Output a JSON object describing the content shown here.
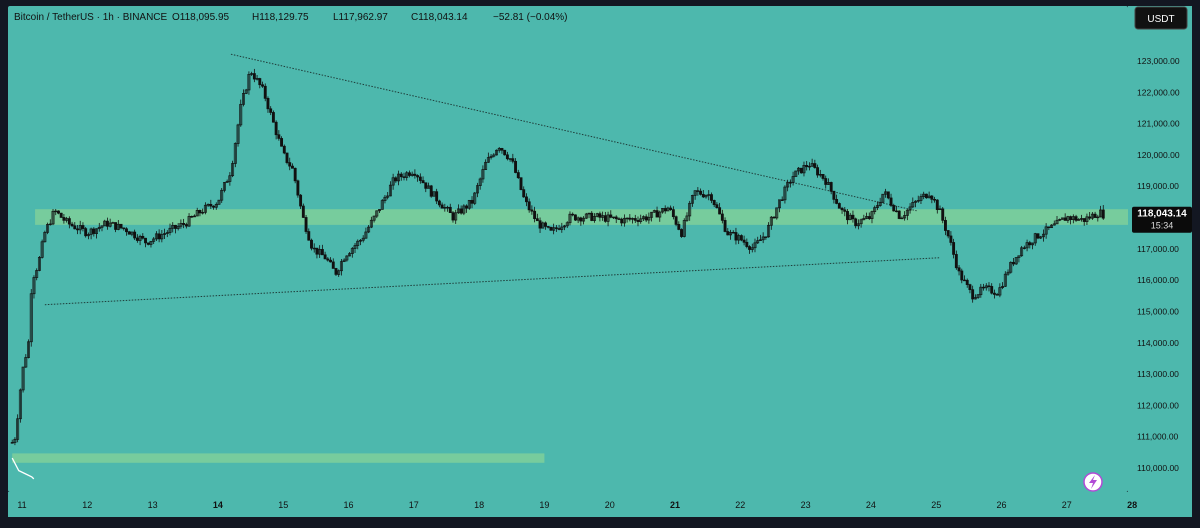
{
  "header": {
    "symbol": "Bitcoin / TetherUS · 1h · BINANCE",
    "open": "O118,095.95",
    "high": "H118,129.75",
    "low": "L117,962.97",
    "close": "C118,043.14",
    "change": "−52.81 (−0.04%)"
  },
  "currency_button": "USDT",
  "price_tag": {
    "price": "118,043.14",
    "countdown": "15:34"
  },
  "colors": {
    "background": "#4db8ad",
    "frame": "#131722",
    "zone": "#7fcf9a",
    "candle": "#111111",
    "price_label_bg": "#0b0b0b",
    "icon_accent": "#b14bd6"
  },
  "icons": {
    "corner": "lightning-icon"
  },
  "chart_data": {
    "type": "candlestick",
    "symbol": "BTC/USDT",
    "interval": "1h",
    "ylim": [
      109500,
      123800
    ],
    "yticks": [
      110000,
      111000,
      112000,
      113000,
      114000,
      115000,
      116000,
      117000,
      118000,
      119000,
      120000,
      121000,
      122000,
      123000
    ],
    "ytick_labels": [
      "110,000.00",
      "111,000.00",
      "112,000.00",
      "113,000.00",
      "114,000.00",
      "115,000.00",
      "116,000.00",
      "117,000.00",
      "118,000.00",
      "119,000.00",
      "120,000.00",
      "121,000.00",
      "122,000.00",
      "123,000.00"
    ],
    "xlim": [
      11.0,
      28.0
    ],
    "xticks": [
      {
        "x": 11,
        "label": "11",
        "bold": false
      },
      {
        "x": 12,
        "label": "12",
        "bold": false
      },
      {
        "x": 13,
        "label": "13",
        "bold": false
      },
      {
        "x": 14,
        "label": "14",
        "bold": true
      },
      {
        "x": 15,
        "label": "15",
        "bold": false
      },
      {
        "x": 16,
        "label": "16",
        "bold": false
      },
      {
        "x": 17,
        "label": "17",
        "bold": false
      },
      {
        "x": 18,
        "label": "18",
        "bold": false
      },
      {
        "x": 19,
        "label": "19",
        "bold": false
      },
      {
        "x": 20,
        "label": "20",
        "bold": false
      },
      {
        "x": 21,
        "label": "21",
        "bold": true
      },
      {
        "x": 22,
        "label": "22",
        "bold": false
      },
      {
        "x": 23,
        "label": "23",
        "bold": false
      },
      {
        "x": 24,
        "label": "24",
        "bold": false
      },
      {
        "x": 25,
        "label": "25",
        "bold": false
      },
      {
        "x": 26,
        "label": "26",
        "bold": false
      },
      {
        "x": 27,
        "label": "27",
        "bold": false
      },
      {
        "x": 28,
        "label": "28",
        "bold": true
      }
    ],
    "current_price": 118043.14,
    "price_path": [
      [
        10.85,
        110800
      ],
      [
        10.9,
        111000
      ],
      [
        11.0,
        113000
      ],
      [
        11.1,
        114000
      ],
      [
        11.15,
        116000
      ],
      [
        11.25,
        116500
      ],
      [
        11.35,
        117500
      ],
      [
        11.5,
        118200
      ],
      [
        11.7,
        117800
      ],
      [
        12.0,
        117500
      ],
      [
        12.3,
        117800
      ],
      [
        12.6,
        117600
      ],
      [
        12.9,
        117200
      ],
      [
        13.2,
        117500
      ],
      [
        13.5,
        117800
      ],
      [
        13.75,
        118200
      ],
      [
        14.0,
        118500
      ],
      [
        14.2,
        119500
      ],
      [
        14.35,
        121500
      ],
      [
        14.5,
        122700
      ],
      [
        14.7,
        122000
      ],
      [
        14.85,
        121000
      ],
      [
        15.0,
        120000
      ],
      [
        15.15,
        119500
      ],
      [
        15.3,
        118000
      ],
      [
        15.45,
        117000
      ],
      [
        15.65,
        116700
      ],
      [
        15.8,
        116200
      ],
      [
        15.95,
        116800
      ],
      [
        16.2,
        117300
      ],
      [
        16.4,
        118000
      ],
      [
        16.7,
        119200
      ],
      [
        17.0,
        119500
      ],
      [
        17.3,
        118700
      ],
      [
        17.6,
        118000
      ],
      [
        17.9,
        118500
      ],
      [
        18.1,
        119700
      ],
      [
        18.3,
        120300
      ],
      [
        18.5,
        119800
      ],
      [
        18.7,
        118500
      ],
      [
        18.9,
        117800
      ],
      [
        19.1,
        117500
      ],
      [
        19.4,
        118000
      ],
      [
        19.8,
        118000
      ],
      [
        20.2,
        117900
      ],
      [
        20.6,
        118000
      ],
      [
        20.9,
        118300
      ],
      [
        21.1,
        117500
      ],
      [
        21.3,
        118800
      ],
      [
        21.55,
        118700
      ],
      [
        21.8,
        117500
      ],
      [
        22.0,
        117300
      ],
      [
        22.2,
        117000
      ],
      [
        22.4,
        117500
      ],
      [
        22.6,
        118500
      ],
      [
        22.8,
        119300
      ],
      [
        23.05,
        119700
      ],
      [
        23.3,
        119200
      ],
      [
        23.55,
        118200
      ],
      [
        23.75,
        117800
      ],
      [
        24.0,
        118000
      ],
      [
        24.2,
        118800
      ],
      [
        24.45,
        118000
      ],
      [
        24.7,
        118500
      ],
      [
        24.9,
        118800
      ],
      [
        25.05,
        118200
      ],
      [
        25.2,
        117300
      ],
      [
        25.35,
        116200
      ],
      [
        25.55,
        115500
      ],
      [
        25.75,
        115700
      ],
      [
        25.95,
        115600
      ],
      [
        26.1,
        116300
      ],
      [
        26.3,
        117000
      ],
      [
        26.55,
        117400
      ],
      [
        26.8,
        117700
      ],
      [
        27.0,
        118000
      ],
      [
        27.25,
        117900
      ],
      [
        27.5,
        118150
      ],
      [
        27.6,
        118043
      ]
    ],
    "zones": [
      {
        "x_start": 11.2,
        "x_end": 28.0,
        "y_low": 117750,
        "y_high": 118250
      },
      {
        "x_start": 10.85,
        "x_end": 19.0,
        "y_low": 110150,
        "y_high": 110450
      }
    ],
    "trendlines": [
      {
        "x1": 14.2,
        "y1": 123200,
        "x2": 24.7,
        "y2": 118200,
        "style": "dotted"
      },
      {
        "x1": 11.35,
        "y1": 115200,
        "x2": 25.05,
        "y2": 116700,
        "style": "dotted"
      }
    ],
    "volume_profile": [
      [
        10.85,
        110300
      ],
      [
        10.95,
        109900
      ],
      [
        11.05,
        109800
      ],
      [
        11.15,
        109700
      ]
    ],
    "legend": "none",
    "grid": false
  }
}
